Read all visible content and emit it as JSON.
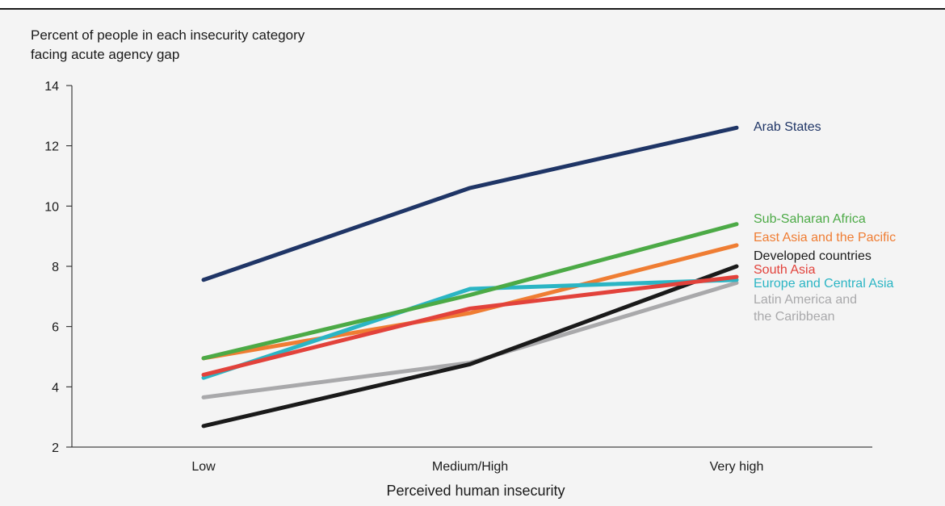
{
  "chart_data": {
    "type": "line",
    "ylabel": "Percent of people in each insecurity category\nfacing acute agency gap",
    "xlabel": "Perceived human insecurity",
    "categories": [
      "Low",
      "Medium/High",
      "Very high"
    ],
    "ylim": [
      2,
      14
    ],
    "yticks": [
      2,
      4,
      6,
      8,
      10,
      12,
      14
    ],
    "grid": false,
    "legend": "direct-labels-right",
    "series": [
      {
        "name": "Arab States",
        "color": "#1f3566",
        "values": [
          7.55,
          10.6,
          12.6
        ]
      },
      {
        "name": "Latin America and\nthe Caribbean",
        "color": "#a9a9ab",
        "values": [
          3.65,
          4.8,
          7.45
        ]
      },
      {
        "name": "Developed countries",
        "color": "#1a1a1a",
        "values": [
          2.7,
          4.75,
          8.0
        ]
      },
      {
        "name": "East Asia and the Pacific",
        "color": "#ef7d33",
        "values": [
          4.95,
          6.45,
          8.7
        ]
      },
      {
        "name": "Europe and Central Asia",
        "color": "#2bb5c4",
        "values": [
          4.3,
          7.25,
          7.55
        ]
      },
      {
        "name": "South Asia",
        "color": "#e2423b",
        "values": [
          4.4,
          6.6,
          7.65
        ]
      },
      {
        "name": "Sub-Saharan Africa",
        "color": "#4caa46",
        "values": [
          4.95,
          7.05,
          9.4
        ]
      }
    ]
  }
}
